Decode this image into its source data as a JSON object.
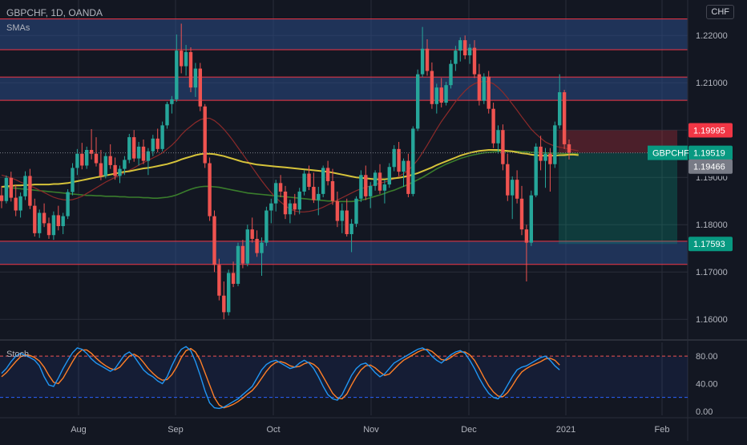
{
  "header": {
    "symbol_line": "GBPCHF, 1D, OANDA",
    "indicator_label": "SMAs",
    "currency": "CHF"
  },
  "oscillator": {
    "label": "Stoch"
  },
  "chart_data": {
    "type": "candlestick",
    "symbol": "GBPCHF",
    "timeframe": "1D",
    "exchange": "OANDA",
    "price_axis_ticks": [
      1.16,
      1.17,
      1.18,
      1.19,
      1.2,
      1.21,
      1.22
    ],
    "price_axis_labels": [
      "1.16000",
      "1.17000",
      "1.18000",
      "1.19000",
      "1.20000",
      "1.21000",
      "1.22000"
    ],
    "ylim": [
      1.1558,
      1.2275
    ],
    "x_axis_labels": [
      "Aug",
      "Sep",
      "Oct",
      "Nov",
      "Dec",
      "2021",
      "Feb"
    ],
    "price_tags": [
      {
        "name": "stop-loss",
        "value": "1.19995",
        "color": "#f23645"
      },
      {
        "name": "symbol",
        "label": "GBPCHF",
        "value": "1.19519",
        "color": "#089981"
      },
      {
        "name": "countdown",
        "value": "19:10:31",
        "color": "#131722"
      },
      {
        "name": "sma",
        "value": "1.19466",
        "color": "#787b86"
      },
      {
        "name": "take-profit",
        "value": "1.17593",
        "color": "#089981"
      }
    ],
    "zones": [
      {
        "top": 1.2235,
        "bottom": 1.217
      },
      {
        "top": 1.2112,
        "bottom": 1.2063
      },
      {
        "top": 1.1765,
        "bottom": 1.1716
      }
    ],
    "position": {
      "entry": 1.19519,
      "stop": 1.19995,
      "target": 1.17593
    },
    "candles": [
      [
        1.1862,
        1.1882,
        1.1835,
        1.185
      ],
      [
        1.185,
        1.1904,
        1.1845,
        1.1899
      ],
      [
        1.1899,
        1.1912,
        1.1849,
        1.1857
      ],
      [
        1.1857,
        1.1885,
        1.1818,
        1.183
      ],
      [
        1.183,
        1.1868,
        1.1815,
        1.186
      ],
      [
        1.186,
        1.1913,
        1.1852,
        1.1903
      ],
      [
        1.1903,
        1.1918,
        1.1833,
        1.184
      ],
      [
        1.184,
        1.1855,
        1.1775,
        1.1782
      ],
      [
        1.1782,
        1.1832,
        1.1772,
        1.1825
      ],
      [
        1.1825,
        1.1845,
        1.1795,
        1.1803
      ],
      [
        1.1803,
        1.1815,
        1.177,
        1.1778
      ],
      [
        1.1778,
        1.1828,
        1.1768,
        1.182
      ],
      [
        1.182,
        1.184,
        1.1788,
        1.1797
      ],
      [
        1.1797,
        1.1825,
        1.178,
        1.1818
      ],
      [
        1.1818,
        1.1875,
        1.1812,
        1.1869
      ],
      [
        1.1869,
        1.193,
        1.1862,
        1.192
      ],
      [
        1.192,
        1.196,
        1.1905,
        1.195
      ],
      [
        1.195,
        1.1973,
        1.1917,
        1.1925
      ],
      [
        1.1925,
        1.1965,
        1.1918,
        1.1958
      ],
      [
        1.1958,
        1.2002,
        1.1938,
        1.195
      ],
      [
        1.195,
        1.1985,
        1.1923,
        1.193
      ],
      [
        1.193,
        1.1958,
        1.1894,
        1.1903
      ],
      [
        1.1903,
        1.1952,
        1.1898,
        1.1945
      ],
      [
        1.1945,
        1.197,
        1.1918,
        1.1926
      ],
      [
        1.1926,
        1.1942,
        1.1895,
        1.1903
      ],
      [
        1.1903,
        1.1925,
        1.1888,
        1.1918
      ],
      [
        1.1918,
        1.1945,
        1.1905,
        1.1937
      ],
      [
        1.1937,
        1.1992,
        1.193,
        1.1985
      ],
      [
        1.1985,
        1.2,
        1.1933,
        1.194
      ],
      [
        1.194,
        1.1975,
        1.1925,
        1.1965
      ],
      [
        1.1965,
        1.198,
        1.1928,
        1.1935
      ],
      [
        1.1935,
        1.1962,
        1.1905,
        1.1955
      ],
      [
        1.1955,
        1.199,
        1.1945,
        1.1982
      ],
      [
        1.1982,
        1.2003,
        1.1953,
        1.196
      ],
      [
        1.196,
        1.2018,
        1.1955,
        1.201
      ],
      [
        1.201,
        1.206,
        1.2003,
        1.2055
      ],
      [
        1.2055,
        1.2072,
        1.2035,
        1.2065
      ],
      [
        1.2065,
        1.2202,
        1.206,
        1.2168
      ],
      [
        1.2168,
        1.2225,
        1.212,
        1.2135
      ],
      [
        1.2135,
        1.218,
        1.2115,
        1.2165
      ],
      [
        1.2165,
        1.2175,
        1.208,
        1.209
      ],
      [
        1.209,
        1.2142,
        1.207,
        1.213
      ],
      [
        1.213,
        1.2142,
        1.204,
        1.205
      ],
      [
        1.205,
        1.2055,
        1.192,
        1.193
      ],
      [
        1.193,
        1.1942,
        1.1808,
        1.1818
      ],
      [
        1.1818,
        1.183,
        1.17,
        1.1715
      ],
      [
        1.1715,
        1.1728,
        1.164,
        1.165
      ],
      [
        1.165,
        1.168,
        1.16,
        1.1615
      ],
      [
        1.1615,
        1.1705,
        1.1608,
        1.1698
      ],
      [
        1.1698,
        1.1722,
        1.1668,
        1.1675
      ],
      [
        1.1675,
        1.1762,
        1.167,
        1.1755
      ],
      [
        1.1755,
        1.1768,
        1.1708,
        1.1718
      ],
      [
        1.1718,
        1.18,
        1.1712,
        1.179
      ],
      [
        1.179,
        1.1815,
        1.1762,
        1.177
      ],
      [
        1.177,
        1.1788,
        1.1732,
        1.174
      ],
      [
        1.174,
        1.1773,
        1.1692,
        1.1762
      ],
      [
        1.1762,
        1.1838,
        1.1755,
        1.183
      ],
      [
        1.183,
        1.1855,
        1.1803,
        1.1845
      ],
      [
        1.1845,
        1.1895,
        1.1828,
        1.1888
      ],
      [
        1.1888,
        1.1905,
        1.1858,
        1.187
      ],
      [
        1.187,
        1.1882,
        1.1812,
        1.1822
      ],
      [
        1.1822,
        1.1853,
        1.1803,
        1.1845
      ],
      [
        1.1845,
        1.1865,
        1.182,
        1.1832
      ],
      [
        1.1832,
        1.1878,
        1.1822,
        1.187
      ],
      [
        1.187,
        1.1915,
        1.1862,
        1.1908
      ],
      [
        1.1908,
        1.1925,
        1.1873,
        1.188
      ],
      [
        1.188,
        1.191,
        1.1846,
        1.1852
      ],
      [
        1.1852,
        1.188,
        1.182,
        1.1865
      ],
      [
        1.1865,
        1.1925,
        1.1858,
        1.192
      ],
      [
        1.192,
        1.1935,
        1.1883,
        1.1892
      ],
      [
        1.1892,
        1.1918,
        1.1842,
        1.185
      ],
      [
        1.185,
        1.187,
        1.1795,
        1.1808
      ],
      [
        1.1808,
        1.1845,
        1.1782,
        1.183
      ],
      [
        1.183,
        1.1855,
        1.1775,
        1.178
      ],
      [
        1.178,
        1.1812,
        1.1742,
        1.1802
      ],
      [
        1.1802,
        1.186,
        1.1795,
        1.1855
      ],
      [
        1.1855,
        1.1915,
        1.1848,
        1.1905
      ],
      [
        1.1905,
        1.1925,
        1.1852,
        1.186
      ],
      [
        1.186,
        1.189,
        1.1835,
        1.1882
      ],
      [
        1.1882,
        1.1915,
        1.1872,
        1.191
      ],
      [
        1.191,
        1.1928,
        1.1865,
        1.1872
      ],
      [
        1.1872,
        1.1895,
        1.1845,
        1.1885
      ],
      [
        1.1885,
        1.193,
        1.1878,
        1.1922
      ],
      [
        1.1922,
        1.1968,
        1.1913,
        1.196
      ],
      [
        1.196,
        1.1975,
        1.1903,
        1.1912
      ],
      [
        1.1912,
        1.194,
        1.188,
        1.1935
      ],
      [
        1.1935,
        1.195,
        1.1858,
        1.1865
      ],
      [
        1.1865,
        1.2008,
        1.186,
        1.2003
      ],
      [
        1.2003,
        1.2128,
        1.1998,
        1.2118
      ],
      [
        1.2118,
        1.2218,
        1.2112,
        1.2172
      ],
      [
        1.2172,
        1.2192,
        1.2115,
        1.2125
      ],
      [
        1.2125,
        1.2143,
        1.2045,
        1.2055
      ],
      [
        1.2055,
        1.2098,
        1.2035,
        1.209
      ],
      [
        1.209,
        1.211,
        1.2048,
        1.2058
      ],
      [
        1.2058,
        1.2102,
        1.2052,
        1.2095
      ],
      [
        1.2095,
        1.2148,
        1.2088,
        1.214
      ],
      [
        1.214,
        1.2178,
        1.2125,
        1.2168
      ],
      [
        1.2168,
        1.2196,
        1.2145,
        1.219
      ],
      [
        1.219,
        1.22,
        1.215,
        1.2158
      ],
      [
        1.2158,
        1.2182,
        1.214,
        1.2174
      ],
      [
        1.2174,
        1.219,
        1.211,
        1.2118
      ],
      [
        1.2118,
        1.214,
        1.2052,
        1.2062
      ],
      [
        1.2062,
        1.212,
        1.2055,
        1.2113
      ],
      [
        1.2113,
        1.2125,
        1.2035,
        1.2045
      ],
      [
        1.2045,
        1.2058,
        1.1962,
        1.1972
      ],
      [
        1.1972,
        1.201,
        1.195,
        1.2
      ],
      [
        1.2,
        1.2012,
        1.1915,
        1.1928
      ],
      [
        1.1928,
        1.195,
        1.185,
        1.1862
      ],
      [
        1.1862,
        1.1902,
        1.1812,
        1.1895
      ],
      [
        1.1895,
        1.1915,
        1.1845,
        1.1855
      ],
      [
        1.1855,
        1.1882,
        1.1778,
        1.179
      ],
      [
        1.179,
        1.18,
        1.168,
        1.1762
      ],
      [
        1.1762,
        1.1872,
        1.1755,
        1.1862
      ],
      [
        1.1862,
        1.1972,
        1.1858,
        1.1965
      ],
      [
        1.1965,
        1.1988,
        1.1915,
        1.1935
      ],
      [
        1.1935,
        1.1962,
        1.1878,
        1.195
      ],
      [
        1.195,
        1.1962,
        1.187,
        1.1928
      ],
      [
        1.1928,
        1.2018,
        1.192,
        1.201
      ],
      [
        1.201,
        1.2118,
        1.2003,
        1.208
      ],
      [
        1.208,
        1.2085,
        1.196,
        1.197
      ],
      [
        1.197,
        1.198,
        1.1938,
        1.1952
      ]
    ],
    "sma_short": [
      1.1905,
      1.1902,
      1.1899,
      1.1895,
      1.189,
      1.1886,
      1.1882,
      1.1878,
      1.1873,
      1.1868,
      1.1863,
      1.1858,
      1.1855,
      1.1853,
      1.1852,
      1.1853,
      1.1856,
      1.186,
      1.1866,
      1.1872,
      1.1878,
      1.1884,
      1.189,
      1.1895,
      1.19,
      1.1905,
      1.191,
      1.1915,
      1.192,
      1.1926,
      1.1931,
      1.1936,
      1.1941,
      1.1946,
      1.1952,
      1.196,
      1.1968,
      1.1978,
      1.199,
      1.2,
      1.2008,
      1.2016,
      1.2022,
      1.2025,
      1.2025,
      1.202,
      1.2012,
      1.2002,
      1.199,
      1.1977,
      1.1963,
      1.1949,
      1.1935,
      1.1921,
      1.1907,
      1.1893,
      1.188,
      1.1868,
      1.1857,
      1.1848,
      1.184,
      1.1833,
      1.1829,
      1.1827,
      1.1827,
      1.1828,
      1.183,
      1.1833,
      1.1837,
      1.1842,
      1.1847,
      1.1852,
      1.1857,
      1.1862,
      1.1867,
      1.1872,
      1.1876,
      1.1879,
      1.1882,
      1.1885,
      1.1888,
      1.189,
      1.1893,
      1.1897,
      1.1902,
      1.1908,
      1.1915,
      1.1925,
      1.1937,
      1.1952,
      1.1968,
      1.1985,
      1.2002,
      1.2018,
      1.2032,
      1.2046,
      1.206,
      1.2072,
      1.2083,
      1.2092,
      1.2098,
      1.2102,
      1.2103,
      1.2102,
      1.2098,
      1.209,
      1.208,
      1.2068,
      1.2055,
      1.2042,
      1.2028,
      1.2015,
      1.2002,
      1.1992,
      1.1983,
      1.1975,
      1.197,
      1.1966,
      1.1964,
      1.1962,
      1.196,
      1.1958,
      1.1956
    ],
    "sma_mid": [
      1.188,
      1.1881,
      1.1882,
      1.1883,
      1.1883,
      1.1884,
      1.1884,
      1.1885,
      1.1885,
      1.1885,
      1.1885,
      1.1886,
      1.1886,
      1.1887,
      1.1888,
      1.189,
      1.1892,
      1.1894,
      1.1896,
      1.1898,
      1.19,
      1.1902,
      1.1904,
      1.1906,
      1.1908,
      1.191,
      1.1912,
      1.1913,
      1.1915,
      1.1917,
      1.1919,
      1.192,
      1.1922,
      1.1924,
      1.1926,
      1.1928,
      1.1931,
      1.1934,
      1.1938,
      1.1941,
      1.1944,
      1.1947,
      1.1949,
      1.195,
      1.195,
      1.1949,
      1.1947,
      1.1945,
      1.1942,
      1.1939,
      1.1936,
      1.1933,
      1.1931,
      1.1929,
      1.1927,
      1.1926,
      1.1925,
      1.1924,
      1.1923,
      1.1922,
      1.1921,
      1.192,
      1.1919,
      1.1918,
      1.1917,
      1.1916,
      1.1915,
      1.1914,
      1.1913,
      1.1912,
      1.191,
      1.1908,
      1.1906,
      1.1904,
      1.1902,
      1.19,
      1.1899,
      1.1898,
      1.1897,
      1.1896,
      1.1896,
      1.1896,
      1.1897,
      1.1898,
      1.1899,
      1.1901,
      1.1903,
      1.1906,
      1.1909,
      1.1913,
      1.1917,
      1.1921,
      1.1926,
      1.193,
      1.1934,
      1.1938,
      1.1942,
      1.1946,
      1.1949,
      1.1952,
      1.1954,
      1.1956,
      1.1957,
      1.1958,
      1.1958,
      1.1958,
      1.1957,
      1.1956,
      1.1955,
      1.1953,
      1.1951,
      1.195,
      1.1948,
      1.1947,
      1.1946,
      1.1946,
      1.1946,
      1.1946,
      1.1947,
      1.1947,
      1.1948,
      1.1948,
      1.1947
    ],
    "sma_long": [
      1.188,
      1.1879,
      1.1878,
      1.1877,
      1.1876,
      1.1875,
      1.1874,
      1.1873,
      1.1872,
      1.1871,
      1.187,
      1.1869,
      1.1868,
      1.1867,
      1.1866,
      1.1865,
      1.1864,
      1.1863,
      1.1862,
      1.1862,
      1.1861,
      1.1861,
      1.186,
      1.186,
      1.186,
      1.1859,
      1.1859,
      1.1858,
      1.1858,
      1.1858,
      1.1857,
      1.1857,
      1.1856,
      1.1856,
      1.1857,
      1.1858,
      1.186,
      1.1863,
      1.1867,
      1.1871,
      1.1875,
      1.1878,
      1.188,
      1.1881,
      1.1881,
      1.188,
      1.1879,
      1.1877,
      1.1875,
      1.1873,
      1.1871,
      1.1869,
      1.1867,
      1.1866,
      1.1865,
      1.1864,
      1.1863,
      1.1862,
      1.1861,
      1.186,
      1.1859,
      1.1858,
      1.1857,
      1.1856,
      1.1855,
      1.1854,
      1.1853,
      1.1852,
      1.1851,
      1.185,
      1.185,
      1.1849,
      1.1849,
      1.1849,
      1.1849,
      1.185,
      1.1852,
      1.1854,
      1.1857,
      1.186,
      1.1863,
      1.1866,
      1.187,
      1.1873,
      1.1877,
      1.1881,
      1.1885,
      1.189,
      1.1895,
      1.19,
      1.1906,
      1.1912,
      1.1918,
      1.1923,
      1.1928,
      1.1932,
      1.1936,
      1.194,
      1.1943,
      1.1946,
      1.1948,
      1.195,
      1.1952,
      1.1953,
      1.1954,
      1.1955,
      1.1955,
      1.1955,
      1.1955,
      1.1955,
      1.1954,
      1.1954,
      1.1953,
      1.1953,
      1.1952,
      1.1952,
      1.1951,
      1.1951,
      1.1951,
      1.195,
      1.195,
      1.195,
      1.195
    ],
    "stoch": {
      "k": [
        55,
        62,
        72,
        80,
        84,
        81,
        78,
        74,
        66,
        50,
        38,
        36,
        48,
        62,
        74,
        85,
        92,
        90,
        84,
        76,
        70,
        66,
        62,
        58,
        62,
        72,
        82,
        86,
        80,
        70,
        60,
        54,
        50,
        44,
        40,
        50,
        66,
        80,
        90,
        94,
        88,
        72,
        52,
        30,
        12,
        5,
        4,
        6,
        10,
        14,
        18,
        24,
        30,
        36,
        48,
        60,
        68,
        72,
        74,
        70,
        66,
        62,
        64,
        70,
        74,
        70,
        62,
        50,
        36,
        24,
        18,
        16,
        24,
        38,
        52,
        62,
        68,
        70,
        64,
        56,
        50,
        54,
        62,
        70,
        74,
        78,
        82,
        86,
        90,
        92,
        88,
        80,
        74,
        70,
        76,
        82,
        86,
        88,
        84,
        74,
        62,
        48,
        36,
        26,
        20,
        18,
        26,
        38,
        50,
        60,
        64,
        66,
        70,
        74,
        78,
        80,
        74,
        66,
        60
      ],
      "d": [
        50,
        56,
        64,
        72,
        79,
        82,
        81,
        78,
        73,
        64,
        52,
        42,
        40,
        48,
        60,
        72,
        83,
        89,
        89,
        84,
        77,
        71,
        66,
        62,
        60,
        64,
        72,
        80,
        83,
        79,
        71,
        62,
        55,
        49,
        45,
        46,
        53,
        64,
        78,
        88,
        91,
        86,
        74,
        56,
        38,
        20,
        9,
        5,
        7,
        10,
        14,
        19,
        25,
        30,
        38,
        48,
        58,
        66,
        71,
        72,
        70,
        66,
        64,
        65,
        69,
        71,
        68,
        62,
        50,
        38,
        26,
        19,
        18,
        25,
        38,
        50,
        60,
        66,
        67,
        63,
        57,
        52,
        54,
        61,
        68,
        74,
        78,
        82,
        86,
        89,
        90,
        87,
        81,
        75,
        74,
        78,
        83,
        86,
        86,
        82,
        74,
        62,
        49,
        37,
        28,
        22,
        21,
        27,
        37,
        48,
        57,
        62,
        66,
        69,
        72,
        76,
        77,
        74,
        67
      ],
      "levels": {
        "upper": 80,
        "lower": 20
      },
      "ticks": [
        "80.00",
        "40.00",
        "0.00"
      ],
      "ylim": [
        -6,
        100
      ]
    }
  }
}
